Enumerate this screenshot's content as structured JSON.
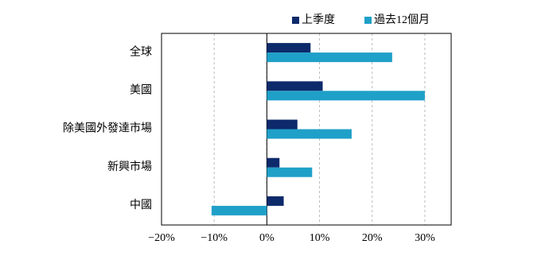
{
  "chart_data": {
    "type": "bar",
    "orientation": "horizontal",
    "categories": [
      "全球",
      "美國",
      "除美國外發達市場",
      "新興市場",
      "中國"
    ],
    "series": [
      {
        "name": "上季度",
        "color": "#0d2a6b",
        "values": [
          8.3,
          10.6,
          5.8,
          2.4,
          3.2
        ]
      },
      {
        "name": "過去12個月",
        "color": "#1fa0c8",
        "values": [
          23.8,
          30.0,
          16.1,
          8.6,
          -10.5
        ]
      }
    ],
    "xlim": [
      -20,
      35
    ],
    "xticks": [
      {
        "value": -20,
        "label": "−20%"
      },
      {
        "value": -10,
        "label": "−10%"
      },
      {
        "value": 0,
        "label": "0%"
      },
      {
        "value": 10,
        "label": "10%"
      },
      {
        "value": 20,
        "label": "20%"
      },
      {
        "value": 30,
        "label": "30%"
      }
    ],
    "grid": true,
    "legend": "top"
  }
}
